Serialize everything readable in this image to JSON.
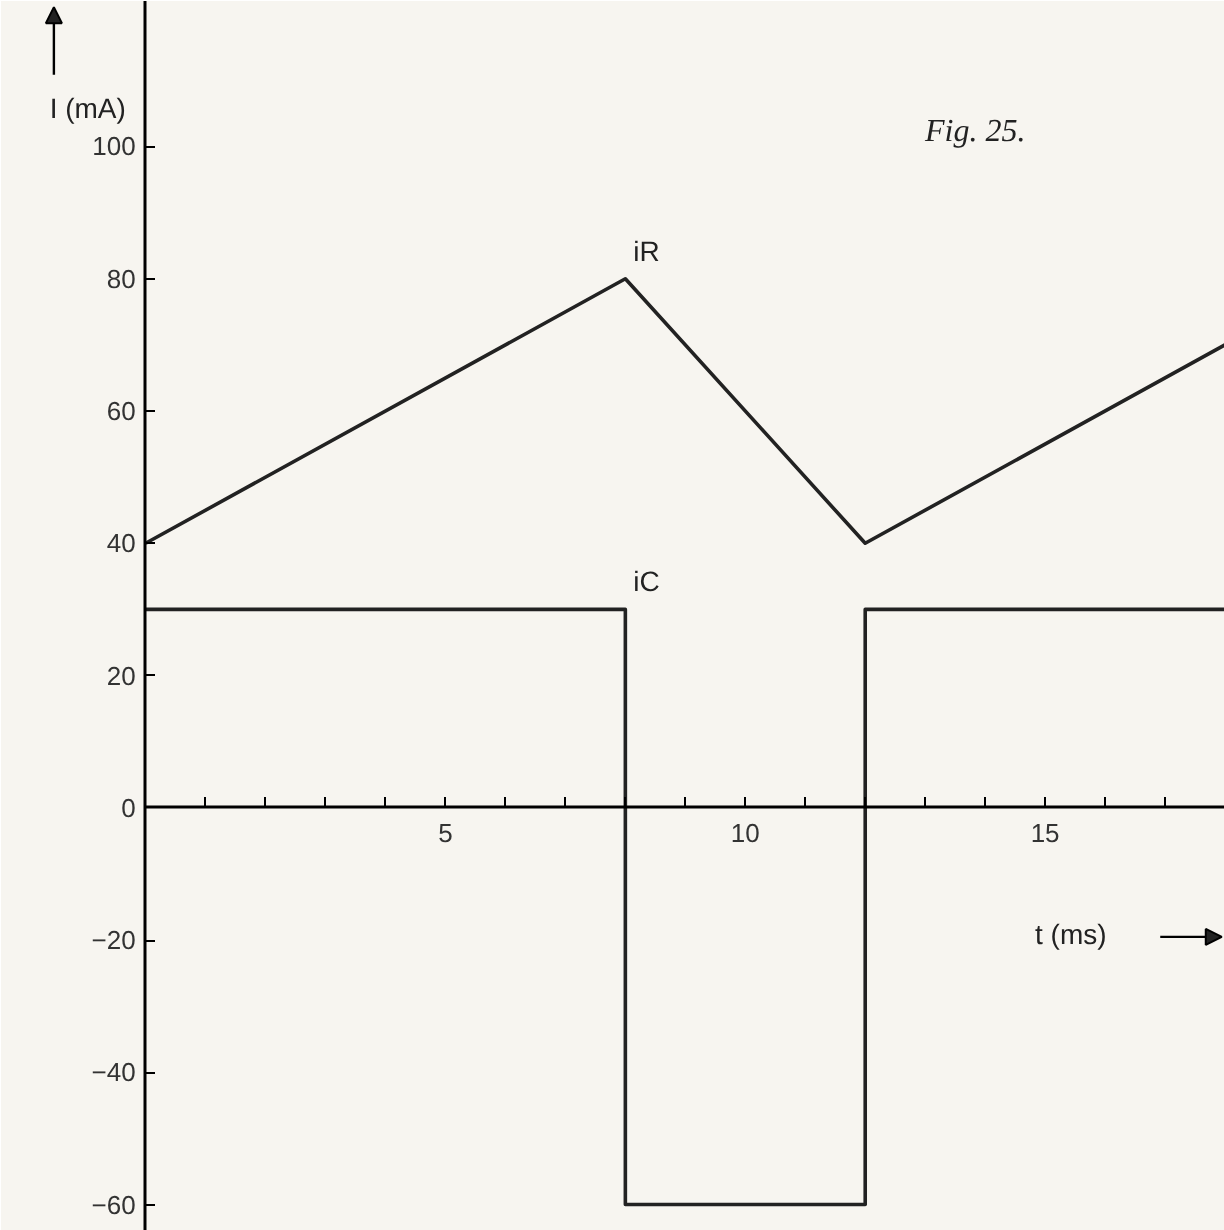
{
  "chart_data": {
    "type": "line",
    "ylabel": "I (mA)",
    "xlabel": "t (ms)",
    "annotations": [
      "Fig. 25."
    ],
    "xlim": [
      0,
      18
    ],
    "ylim": [
      -64,
      122
    ],
    "xticks": [
      {
        "value": 1,
        "label": null
      },
      {
        "value": 2,
        "label": null
      },
      {
        "value": 3,
        "label": null
      },
      {
        "value": 4,
        "label": null
      },
      5,
      {
        "value": 6,
        "label": null
      },
      {
        "value": 7,
        "label": null
      },
      {
        "value": 8,
        "label": null
      },
      {
        "value": 9,
        "label": null
      },
      10,
      {
        "value": 11,
        "label": null
      },
      {
        "value": 12,
        "label": null
      },
      {
        "value": 13,
        "label": null
      },
      {
        "value": 14,
        "label": null
      },
      15,
      {
        "value": 16,
        "label": null
      },
      {
        "value": 17,
        "label": null
      }
    ],
    "yticks": [
      -60,
      -40,
      -20,
      0,
      20,
      40,
      60,
      80,
      100
    ],
    "grid": false,
    "marker": "none",
    "line_style": "solid",
    "series": [
      {
        "name": "iR",
        "color": "#222222",
        "x": [
          0,
          8,
          12,
          18
        ],
        "values": [
          40,
          80,
          40,
          70
        ]
      },
      {
        "name": "iC",
        "color": "#222222",
        "x": [
          0,
          8,
          8,
          12,
          12,
          18
        ],
        "values": [
          30,
          30,
          -60,
          -60,
          30,
          30
        ]
      }
    ]
  }
}
